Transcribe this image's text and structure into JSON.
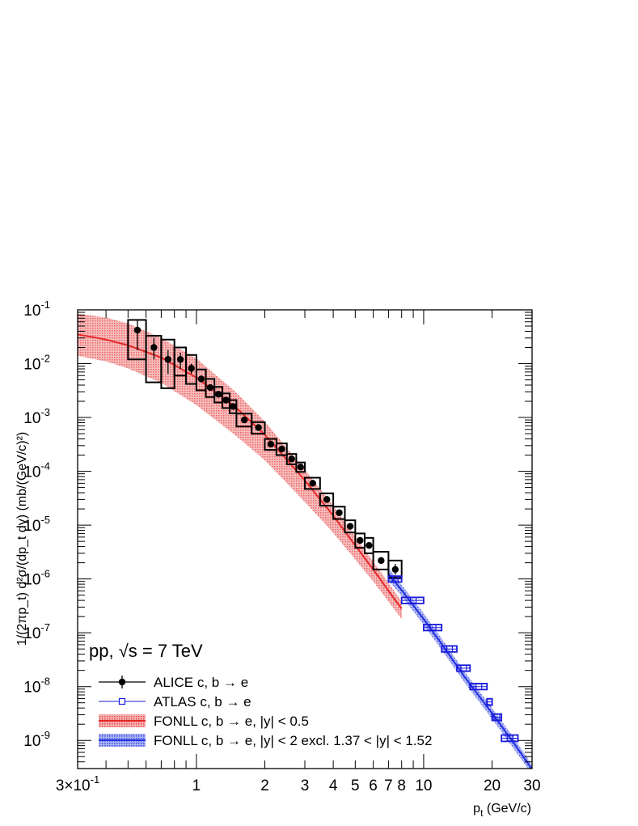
{
  "chart_data": {
    "type": "scatter",
    "xlabel": "p",
    "xlabel_sub": "t",
    "xlabel_unit": "(GeV/c)",
    "ylabel": "1/(2πp_t) d²σ/(dp_t dy) (mb/(GeV/c)²)",
    "xscale": "log",
    "yscale": "log",
    "xlim": [
      0.3,
      30
    ],
    "ylim": [
      3e-10,
      0.1
    ],
    "x_ticks": [
      {
        "v": 0.3,
        "label": "3×10",
        "exp": "-1"
      },
      {
        "v": 1,
        "label": "1"
      },
      {
        "v": 2,
        "label": "2"
      },
      {
        "v": 3,
        "label": "3"
      },
      {
        "v": 4,
        "label": "4"
      },
      {
        "v": 5,
        "label": "5"
      },
      {
        "v": 6,
        "label": "6"
      },
      {
        "v": 7,
        "label": "7"
      },
      {
        "v": 8,
        "label": "8"
      },
      {
        "v": 10,
        "label": "10"
      },
      {
        "v": 20,
        "label": "20"
      },
      {
        "v": 30,
        "label": "30"
      }
    ],
    "y_ticks": [
      {
        "v": 0.1,
        "label": "10",
        "exp": "-1"
      },
      {
        "v": 0.01,
        "label": "10",
        "exp": "-2"
      },
      {
        "v": 0.001,
        "label": "10",
        "exp": "-3"
      },
      {
        "v": 0.0001,
        "label": "10",
        "exp": "-4"
      },
      {
        "v": 1e-05,
        "label": "10",
        "exp": "-5"
      },
      {
        "v": 1e-06,
        "label": "10",
        "exp": "-6"
      },
      {
        "v": 1e-07,
        "label": "10",
        "exp": "-7"
      },
      {
        "v": 1e-08,
        "label": "10",
        "exp": "-8"
      },
      {
        "v": 1e-09,
        "label": "10",
        "exp": "-9"
      }
    ],
    "annotation": "pp, √s = 7 TeV",
    "legend": [
      {
        "label": "ALICE c, b → e",
        "kind": "alice"
      },
      {
        "label": "ATLAS c, b → e",
        "kind": "atlas"
      },
      {
        "label": "FONLL c, b → e, |y| < 0.5",
        "kind": "fonll_alice"
      },
      {
        "label": "FONLL c, b → e, |y| < 2 excl. 1.37 < |y| < 1.52",
        "kind": "fonll_atlas"
      }
    ],
    "series": [
      {
        "name": "ALICE c, b → e",
        "color": "#000000",
        "points": [
          {
            "x": 0.55,
            "y": 0.042,
            "xlo": 0.5,
            "xhi": 0.6,
            "stat": [
              0.018,
              0.065
            ],
            "syst": [
              0.012,
              0.065
            ]
          },
          {
            "x": 0.65,
            "y": 0.02,
            "xlo": 0.6,
            "xhi": 0.7,
            "stat": [
              0.012,
              0.03
            ],
            "syst": [
              0.0045,
              0.033
            ]
          },
          {
            "x": 0.75,
            "y": 0.012,
            "xlo": 0.7,
            "xhi": 0.8,
            "stat": [
              0.0065,
              0.018
            ],
            "syst": [
              0.0035,
              0.028
            ]
          },
          {
            "x": 0.85,
            "y": 0.012,
            "xlo": 0.8,
            "xhi": 0.9,
            "stat": [
              0.008,
              0.016
            ],
            "syst": [
              0.006,
              0.02
            ]
          },
          {
            "x": 0.95,
            "y": 0.0082,
            "xlo": 0.9,
            "xhi": 1.0,
            "stat": [
              0.0065,
              0.01
            ],
            "syst": [
              0.0042,
              0.0145
            ]
          },
          {
            "x": 1.05,
            "y": 0.0052,
            "xlo": 1.0,
            "xhi": 1.1,
            "stat": [
              0.0045,
              0.006
            ],
            "syst": [
              0.0032,
              0.0078
            ]
          },
          {
            "x": 1.15,
            "y": 0.0036,
            "xlo": 1.1,
            "xhi": 1.2,
            "stat": [
              0.0032,
              0.0041
            ],
            "syst": [
              0.0024,
              0.0052
            ]
          },
          {
            "x": 1.25,
            "y": 0.0027,
            "xlo": 1.2,
            "xhi": 1.3,
            "stat": [
              0.0024,
              0.003
            ],
            "syst": [
              0.0019,
              0.0037
            ]
          },
          {
            "x": 1.35,
            "y": 0.0021,
            "xlo": 1.3,
            "xhi": 1.4,
            "stat": [
              0.0019,
              0.0023
            ],
            "syst": [
              0.0015,
              0.0028
            ]
          },
          {
            "x": 1.45,
            "y": 0.0016,
            "xlo": 1.4,
            "xhi": 1.5,
            "stat": [
              0.00145,
              0.00175
            ],
            "syst": [
              0.0012,
              0.0021
            ]
          },
          {
            "x": 1.625,
            "y": 0.0009,
            "xlo": 1.5,
            "xhi": 1.75,
            "stat": [
              0.00082,
              0.00098
            ],
            "syst": [
              0.00068,
              0.00118
            ]
          },
          {
            "x": 1.875,
            "y": 0.00065,
            "xlo": 1.75,
            "xhi": 2.0,
            "stat": [
              0.0006,
              0.0007
            ],
            "syst": [
              0.0005,
              0.00082
            ]
          },
          {
            "x": 2.125,
            "y": 0.00032,
            "xlo": 2.0,
            "xhi": 2.25,
            "stat": [
              0.0003,
              0.00034
            ],
            "syst": [
              0.00025,
              0.0004
            ]
          },
          {
            "x": 2.375,
            "y": 0.00026,
            "xlo": 2.25,
            "xhi": 2.5,
            "stat": [
              0.00024,
              0.00028
            ],
            "syst": [
              0.0002,
              0.00033
            ]
          },
          {
            "x": 2.625,
            "y": 0.00017,
            "xlo": 2.5,
            "xhi": 2.75,
            "stat": [
              0.00016,
              0.00018
            ],
            "syst": [
              0.000135,
              0.00021
            ]
          },
          {
            "x": 2.875,
            "y": 0.00012,
            "xlo": 2.75,
            "xhi": 3.0,
            "stat": [
              0.000112,
              0.000128
            ],
            "syst": [
              9.75e-05,
              0.000146
            ]
          },
          {
            "x": 3.25,
            "y": 6e-05,
            "xlo": 3.0,
            "xhi": 3.5,
            "stat": [
              5.6e-05,
              6.4e-05
            ],
            "syst": [
              4.7e-05,
              7.6e-05
            ]
          },
          {
            "x": 3.75,
            "y": 3e-05,
            "xlo": 3.5,
            "xhi": 4.0,
            "stat": [
              2.8e-05,
              3.2e-05
            ],
            "syst": [
              2.3e-05,
              3.9e-05
            ]
          },
          {
            "x": 4.25,
            "y": 1.7e-05,
            "xlo": 4.0,
            "xhi": 4.5,
            "stat": [
              1.55e-05,
              1.85e-05
            ],
            "syst": [
              1.3e-05,
              2.2e-05
            ]
          },
          {
            "x": 4.75,
            "y": 9.5e-06,
            "xlo": 4.5,
            "xhi": 5.0,
            "stat": [
              8.6e-06,
              1.04e-05
            ],
            "syst": [
              7.3e-06,
              1.23e-05
            ]
          },
          {
            "x": 5.25,
            "y": 5.2e-06,
            "xlo": 5.0,
            "xhi": 5.5,
            "stat": [
              4.6e-06,
              5.8e-06
            ],
            "syst": [
              3.8e-06,
              7e-06
            ]
          },
          {
            "x": 5.75,
            "y": 4.2e-06,
            "xlo": 5.5,
            "xhi": 6.0,
            "stat": [
              3.7e-06,
              4.7e-06
            ],
            "syst": [
              3e-06,
              5.8e-06
            ]
          },
          {
            "x": 6.5,
            "y": 2.2e-06,
            "xlo": 6.0,
            "xhi": 7.0,
            "stat": [
              1.9e-06,
              2.5e-06
            ],
            "syst": [
              1.5e-06,
              3.2e-06
            ]
          },
          {
            "x": 7.5,
            "y": 1.5e-06,
            "xlo": 7.0,
            "xhi": 8.0,
            "stat": [
              1.2e-06,
              1.9e-06
            ],
            "syst": [
              1.05e-06,
              2.2e-06
            ]
          }
        ]
      },
      {
        "name": "ATLAS c, b → e",
        "color": "#1a1adc",
        "points": [
          {
            "x": 7.5,
            "y": 1e-06,
            "xlo": 7.0,
            "xhi": 8.0,
            "syst": [
              8.8e-07,
              1.13e-06
            ]
          },
          {
            "x": 9.0,
            "y": 4e-07,
            "xlo": 8.0,
            "xhi": 10.0,
            "syst": [
              3.5e-07,
              4.55e-07
            ]
          },
          {
            "x": 11.0,
            "y": 1.25e-07,
            "xlo": 10.0,
            "xhi": 12.0,
            "syst": [
              1.1e-07,
              1.42e-07
            ]
          },
          {
            "x": 13.0,
            "y": 5e-08,
            "xlo": 12.0,
            "xhi": 14.0,
            "syst": [
              4.4e-08,
              5.7e-08
            ]
          },
          {
            "x": 15.0,
            "y": 2.2e-08,
            "xlo": 14.0,
            "xhi": 16.0,
            "syst": [
              1.93e-08,
              2.5e-08
            ]
          },
          {
            "x": 17.5,
            "y": 1e-08,
            "xlo": 16.0,
            "xhi": 19.0,
            "syst": [
              8.8e-09,
              1.14e-08
            ]
          },
          {
            "x": 19.5,
            "y": 5.2e-09,
            "xlo": 19.0,
            "xhi": 20.0,
            "syst": [
              4.5e-09,
              5.95e-09
            ]
          },
          {
            "x": 21.0,
            "y": 2.7e-09,
            "xlo": 20.0,
            "xhi": 22.0,
            "syst": [
              2.35e-09,
              3.1e-09
            ]
          },
          {
            "x": 24.0,
            "y": 1.1e-09,
            "xlo": 22.0,
            "xhi": 26.0,
            "syst": [
              9.6e-10,
              1.26e-09
            ]
          }
        ]
      }
    ],
    "bands": [
      {
        "name": "FONLL c, b → e, |y| < 0.5",
        "color": "#e62828",
        "x": [
          0.3,
          0.4,
          0.5,
          0.7,
          1.0,
          1.5,
          2.0,
          3.0,
          4.0,
          5.0,
          6.0,
          7.0,
          8.0
        ],
        "central": [
          0.035,
          0.028,
          0.022,
          0.013,
          0.0055,
          0.0015,
          0.00048,
          6.8e-05,
          1.5e-05,
          4.2e-06,
          1.5e-06,
          6e-07,
          2.8e-07
        ],
        "upper": [
          0.085,
          0.072,
          0.056,
          0.03,
          0.0125,
          0.0029,
          0.00084,
          0.000108,
          2.3e-05,
          6.2e-06,
          2.1e-06,
          8.5e-07,
          3.8e-07
        ],
        "lower": [
          0.014,
          0.011,
          0.0082,
          0.0044,
          0.0017,
          0.00045,
          0.00016,
          2.7e-05,
          7.2e-06,
          2.3e-06,
          9e-07,
          3.8e-07,
          1.8e-07
        ]
      },
      {
        "name": "FONLL c, b → e, |y| < 2 excl. 1.37 < |y| < 1.52",
        "color": "#1f2ee0",
        "x": [
          7.0,
          8.0,
          10.0,
          12.0,
          15.0,
          20.0,
          25.0,
          30.0
        ],
        "central": [
          1.25e-06,
          6.2e-07,
          1.8e-07,
          6.2e-08,
          1.6e-08,
          3.2e-09,
          8.8e-10,
          2.9e-10
        ],
        "upper": [
          1.6e-06,
          7.8e-07,
          2.3e-07,
          7.8e-08,
          2e-08,
          4e-09,
          1.1e-09,
          3.5e-10
        ],
        "lower": [
          9.5e-07,
          4.8e-07,
          1.4e-07,
          4.8e-08,
          1.25e-08,
          2.5e-09,
          6.8e-10,
          2.35e-10
        ]
      }
    ]
  }
}
